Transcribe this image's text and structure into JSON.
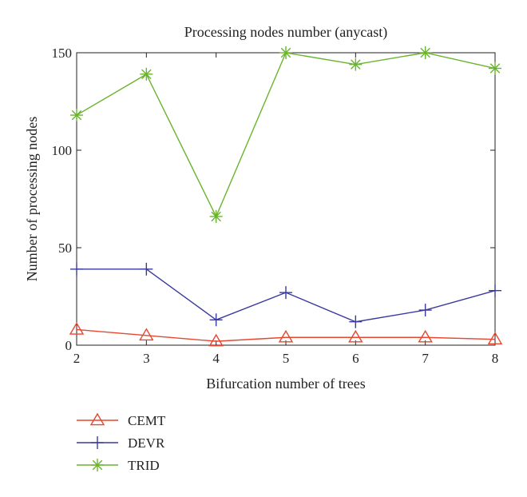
{
  "chart_data": {
    "type": "line",
    "title": "Processing nodes number (anycast)",
    "xlabel": "Bifurcation number of trees",
    "ylabel": "Number of processing nodes",
    "x": [
      2,
      3,
      4,
      5,
      6,
      7,
      8
    ],
    "xlim": [
      2,
      8
    ],
    "ylim": [
      0,
      150
    ],
    "xticks": [
      "2",
      "3",
      "4",
      "5",
      "6",
      "7",
      "8"
    ],
    "yticks": [
      "0",
      "50",
      "100",
      "150"
    ],
    "grid": false,
    "legend_position": "bottom-left, outside plot",
    "series": [
      {
        "name": "CEMT",
        "color": "#e8472f",
        "marker": "triangle",
        "values": [
          8,
          5,
          2,
          4,
          4,
          4,
          3
        ]
      },
      {
        "name": "DEVR",
        "color": "#3a3a9e",
        "marker": "plus",
        "values": [
          39,
          39,
          13,
          27,
          12,
          18,
          28
        ]
      },
      {
        "name": "TRID",
        "color": "#6ab42d",
        "marker": "asterisk",
        "values": [
          118,
          139,
          66,
          150,
          144,
          150,
          142
        ]
      }
    ]
  }
}
